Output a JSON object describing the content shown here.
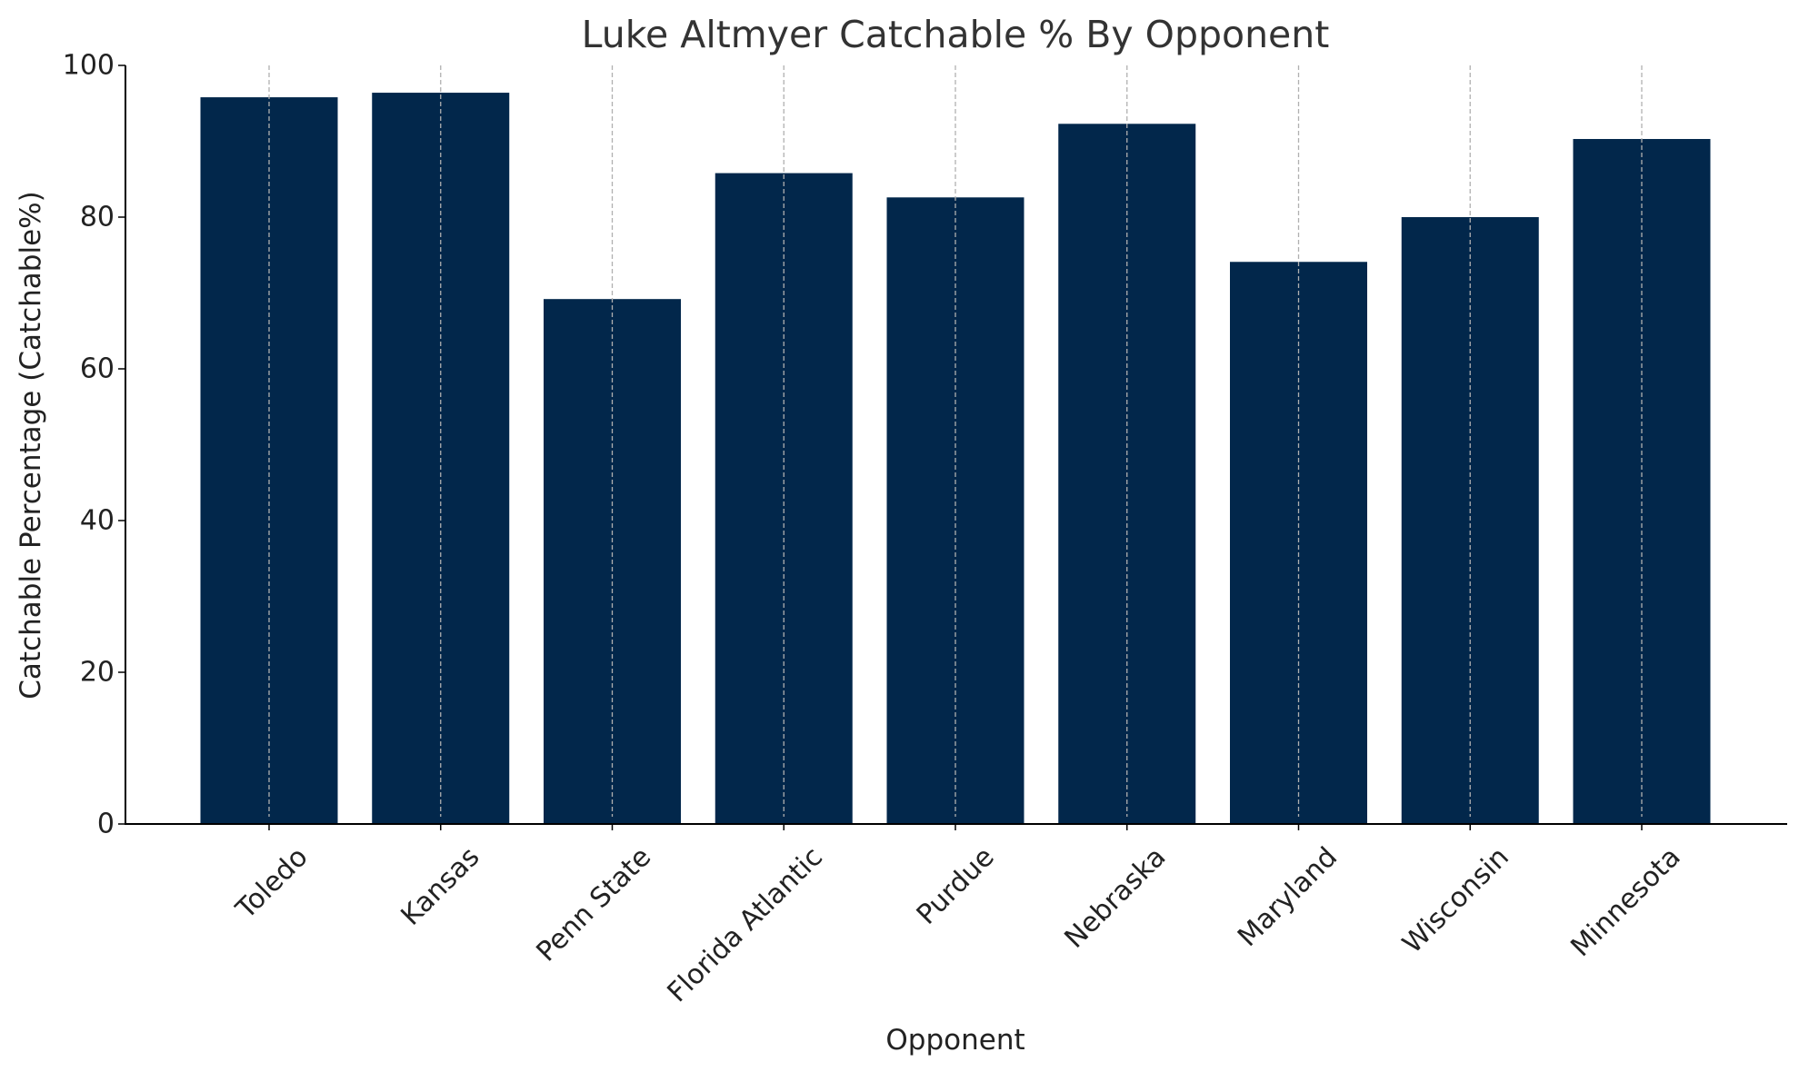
{
  "chart_data": {
    "type": "bar",
    "title": "Luke Altmyer Catchable % By Opponent",
    "xlabel": "Opponent",
    "ylabel": "Catchable Percentage (Catchable%)",
    "categories": [
      "Toledo",
      "Kansas",
      "Penn State",
      "Florida Atlantic",
      "Purdue",
      "Nebraska",
      "Maryland",
      "Wisconsin",
      "Minnesota"
    ],
    "values": [
      95.8,
      96.4,
      69.2,
      85.8,
      82.6,
      92.3,
      74.1,
      80.0,
      90.3
    ],
    "ylim": [
      0,
      100
    ],
    "yticks": [
      0,
      20,
      40,
      60,
      80,
      100
    ],
    "grid": "vertical-dashed",
    "bar_color": "#02274b",
    "grid_color": "#b0b0b0"
  }
}
